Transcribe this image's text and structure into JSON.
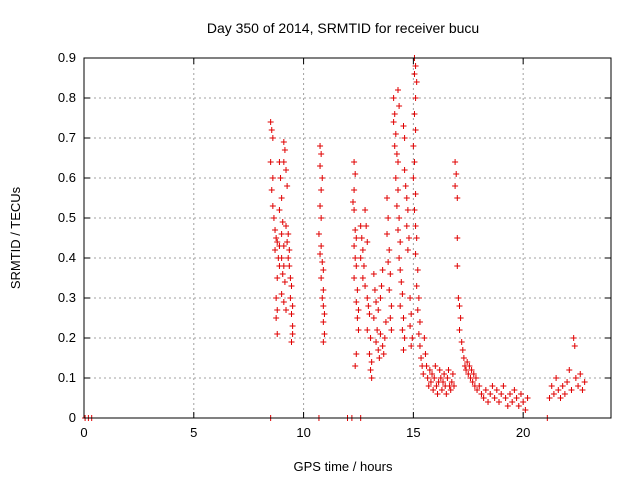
{
  "chart_data": {
    "type": "scatter",
    "title": "Day 350 of 2014, SRMTID for receiver bucu",
    "xlabel": "GPS time / hours",
    "ylabel": "SRMTID / TECUs",
    "xlim": [
      0,
      24
    ],
    "ylim": [
      0,
      0.9
    ],
    "x_ticks": [
      0,
      5,
      10,
      15,
      20
    ],
    "x_tick_labels": [
      "0",
      "5",
      "10",
      "15",
      "20"
    ],
    "y_ticks": [
      0,
      0.1,
      0.2,
      0.3,
      0.4,
      0.5,
      0.6,
      0.7,
      0.8,
      0.9
    ],
    "y_tick_labels": [
      "0",
      "0.1",
      "0.2",
      "0.3",
      "0.4",
      "0.5",
      "0.6",
      "0.7",
      "0.8",
      "0.9"
    ],
    "grid": true,
    "marker": "+",
    "color": "#e00000",
    "series": [
      {
        "name": "SRMTID",
        "points": [
          [
            0.05,
            0
          ],
          [
            0.2,
            0
          ],
          [
            0.35,
            0
          ],
          [
            8.5,
            0
          ],
          [
            10.7,
            0
          ],
          [
            12.0,
            0
          ],
          [
            12.2,
            0
          ],
          [
            12.6,
            0
          ],
          [
            21.1,
            0
          ],
          [
            8.5,
            0.74
          ],
          [
            8.55,
            0.72
          ],
          [
            8.6,
            0.7
          ],
          [
            8.5,
            0.64
          ],
          [
            8.6,
            0.6
          ],
          [
            8.55,
            0.57
          ],
          [
            8.6,
            0.53
          ],
          [
            8.65,
            0.5
          ],
          [
            8.7,
            0.47
          ],
          [
            8.75,
            0.45
          ],
          [
            8.8,
            0.44
          ],
          [
            8.7,
            0.42
          ],
          [
            8.9,
            0.43
          ],
          [
            8.85,
            0.4
          ],
          [
            8.9,
            0.38
          ],
          [
            8.8,
            0.35
          ],
          [
            8.75,
            0.3
          ],
          [
            8.8,
            0.27
          ],
          [
            8.75,
            0.25
          ],
          [
            8.8,
            0.21
          ],
          [
            8.9,
            0.64
          ],
          [
            8.95,
            0.6
          ],
          [
            9.0,
            0.55
          ],
          [
            8.9,
            0.52
          ],
          [
            9.05,
            0.49
          ],
          [
            9.0,
            0.46
          ],
          [
            9.1,
            0.43
          ],
          [
            9.0,
            0.4
          ],
          [
            9.1,
            0.38
          ],
          [
            9.05,
            0.36
          ],
          [
            9.15,
            0.34
          ],
          [
            9.0,
            0.31
          ],
          [
            9.1,
            0.29
          ],
          [
            9.2,
            0.27
          ],
          [
            9.1,
            0.69
          ],
          [
            9.15,
            0.67
          ],
          [
            9.1,
            0.64
          ],
          [
            9.2,
            0.62
          ],
          [
            9.25,
            0.58
          ],
          [
            9.2,
            0.48
          ],
          [
            9.3,
            0.46
          ],
          [
            9.25,
            0.44
          ],
          [
            9.35,
            0.42
          ],
          [
            9.3,
            0.4
          ],
          [
            9.35,
            0.38
          ],
          [
            9.4,
            0.35
          ],
          [
            9.45,
            0.33
          ],
          [
            9.4,
            0.3
          ],
          [
            9.5,
            0.28
          ],
          [
            9.45,
            0.26
          ],
          [
            9.5,
            0.23
          ],
          [
            9.5,
            0.21
          ],
          [
            9.45,
            0.19
          ],
          [
            10.75,
            0.68
          ],
          [
            10.8,
            0.66
          ],
          [
            10.75,
            0.63
          ],
          [
            10.85,
            0.6
          ],
          [
            10.8,
            0.57
          ],
          [
            10.75,
            0.53
          ],
          [
            10.8,
            0.5
          ],
          [
            10.7,
            0.46
          ],
          [
            10.8,
            0.43
          ],
          [
            10.75,
            0.41
          ],
          [
            10.85,
            0.39
          ],
          [
            10.9,
            0.37
          ],
          [
            10.8,
            0.35
          ],
          [
            10.9,
            0.32
          ],
          [
            10.85,
            0.3
          ],
          [
            10.9,
            0.28
          ],
          [
            10.95,
            0.26
          ],
          [
            10.9,
            0.24
          ],
          [
            10.95,
            0.21
          ],
          [
            10.9,
            0.19
          ],
          [
            12.3,
            0.64
          ],
          [
            12.35,
            0.61
          ],
          [
            12.3,
            0.57
          ],
          [
            12.25,
            0.54
          ],
          [
            12.3,
            0.52
          ],
          [
            12.35,
            0.47
          ],
          [
            12.4,
            0.45
          ],
          [
            12.3,
            0.43
          ],
          [
            12.35,
            0.4
          ],
          [
            12.4,
            0.38
          ],
          [
            12.3,
            0.35
          ],
          [
            12.45,
            0.32
          ],
          [
            12.4,
            0.29
          ],
          [
            12.5,
            0.27
          ],
          [
            12.45,
            0.25
          ],
          [
            12.35,
            0.13
          ],
          [
            12.4,
            0.16
          ],
          [
            12.5,
            0.22
          ],
          [
            12.6,
            0.48
          ],
          [
            12.65,
            0.45
          ],
          [
            12.7,
            0.42
          ],
          [
            12.6,
            0.4
          ],
          [
            12.75,
            0.38
          ],
          [
            12.7,
            0.35
          ],
          [
            12.8,
            0.52
          ],
          [
            12.85,
            0.48
          ],
          [
            12.9,
            0.44
          ],
          [
            12.8,
            0.33
          ],
          [
            12.9,
            0.3
          ],
          [
            12.95,
            0.28
          ],
          [
            13.0,
            0.26
          ],
          [
            12.9,
            0.22
          ],
          [
            13.05,
            0.2
          ],
          [
            13.0,
            0.16
          ],
          [
            13.1,
            0.14
          ],
          [
            13.05,
            0.12
          ],
          [
            13.1,
            0.1
          ],
          [
            13.2,
            0.36
          ],
          [
            13.25,
            0.32
          ],
          [
            13.3,
            0.29
          ],
          [
            13.2,
            0.25
          ],
          [
            13.35,
            0.22
          ],
          [
            13.3,
            0.19
          ],
          [
            13.4,
            0.17
          ],
          [
            13.45,
            0.15
          ],
          [
            13.4,
            0.27
          ],
          [
            13.5,
            0.3
          ],
          [
            13.55,
            0.33
          ],
          [
            13.6,
            0.37
          ],
          [
            13.5,
            0.21
          ],
          [
            13.6,
            0.18
          ],
          [
            13.65,
            0.16
          ],
          [
            13.7,
            0.2
          ],
          [
            13.75,
            0.24
          ],
          [
            13.8,
            0.55
          ],
          [
            13.85,
            0.5
          ],
          [
            13.8,
            0.46
          ],
          [
            13.9,
            0.42
          ],
          [
            13.85,
            0.39
          ],
          [
            13.95,
            0.36
          ],
          [
            13.9,
            0.32
          ],
          [
            14.0,
            0.28
          ],
          [
            13.95,
            0.25
          ],
          [
            14.0,
            0.22
          ],
          [
            14.1,
            0.8
          ],
          [
            14.15,
            0.76
          ],
          [
            14.1,
            0.74
          ],
          [
            14.2,
            0.71
          ],
          [
            14.15,
            0.68
          ],
          [
            14.25,
            0.66
          ],
          [
            14.3,
            0.64
          ],
          [
            14.2,
            0.6
          ],
          [
            14.3,
            0.57
          ],
          [
            14.25,
            0.53
          ],
          [
            14.35,
            0.5
          ],
          [
            14.3,
            0.47
          ],
          [
            14.4,
            0.44
          ],
          [
            14.35,
            0.4
          ],
          [
            14.4,
            0.37
          ],
          [
            14.45,
            0.34
          ],
          [
            14.5,
            0.31
          ],
          [
            14.4,
            0.28
          ],
          [
            14.55,
            0.25
          ],
          [
            14.5,
            0.22
          ],
          [
            14.6,
            0.2
          ],
          [
            14.55,
            0.17
          ],
          [
            14.3,
            0.82
          ],
          [
            14.35,
            0.78
          ],
          [
            14.6,
            0.62
          ],
          [
            14.65,
            0.58
          ],
          [
            14.7,
            0.55
          ],
          [
            14.75,
            0.52
          ],
          [
            14.7,
            0.48
          ],
          [
            14.8,
            0.45
          ],
          [
            14.75,
            0.42
          ],
          [
            14.85,
            0.3
          ],
          [
            14.9,
            0.26
          ],
          [
            14.85,
            0.23
          ],
          [
            14.95,
            0.2
          ],
          [
            14.9,
            0.18
          ],
          [
            14.55,
            0.73
          ],
          [
            14.6,
            0.7
          ],
          [
            15.05,
            0.9
          ],
          [
            15.1,
            0.88
          ],
          [
            15.05,
            0.86
          ],
          [
            15.15,
            0.84
          ],
          [
            15.1,
            0.8
          ],
          [
            15.05,
            0.76
          ],
          [
            15.1,
            0.72
          ],
          [
            15.0,
            0.68
          ],
          [
            15.05,
            0.64
          ],
          [
            15.0,
            0.6
          ],
          [
            15.1,
            0.56
          ],
          [
            15.05,
            0.52
          ],
          [
            15.1,
            0.48
          ],
          [
            15.15,
            0.45
          ],
          [
            15.1,
            0.41
          ],
          [
            15.2,
            0.37
          ],
          [
            15.15,
            0.33
          ],
          [
            15.25,
            0.3
          ],
          [
            15.2,
            0.27
          ],
          [
            15.3,
            0.24
          ],
          [
            15.25,
            0.21
          ],
          [
            15.3,
            0.18
          ],
          [
            15.35,
            0.15
          ],
          [
            15.4,
            0.13
          ],
          [
            15.45,
            0.11
          ],
          [
            15.5,
            0.2
          ],
          [
            15.55,
            0.16
          ],
          [
            15.6,
            0.13
          ],
          [
            15.65,
            0.1
          ],
          [
            15.7,
            0.08
          ],
          [
            15.75,
            0.12
          ],
          [
            15.8,
            0.09
          ],
          [
            15.85,
            0.11
          ],
          [
            15.9,
            0.07
          ],
          [
            15.95,
            0.1
          ],
          [
            16.0,
            0.13
          ],
          [
            16.05,
            0.08
          ],
          [
            16.1,
            0.06
          ],
          [
            16.15,
            0.09
          ],
          [
            16.2,
            0.12
          ],
          [
            16.25,
            0.1
          ],
          [
            16.3,
            0.07
          ],
          [
            16.35,
            0.09
          ],
          [
            16.4,
            0.11
          ],
          [
            16.45,
            0.08
          ],
          [
            16.5,
            0.06
          ],
          [
            16.55,
            0.1
          ],
          [
            16.6,
            0.12
          ],
          [
            16.65,
            0.08
          ],
          [
            16.7,
            0.07
          ],
          [
            16.75,
            0.09
          ],
          [
            16.8,
            0.11
          ],
          [
            16.85,
            0.08
          ],
          [
            16.9,
            0.64
          ],
          [
            16.95,
            0.61
          ],
          [
            16.9,
            0.58
          ],
          [
            17.0,
            0.55
          ],
          [
            17.0,
            0.45
          ],
          [
            17.0,
            0.38
          ],
          [
            17.05,
            0.3
          ],
          [
            17.1,
            0.28
          ],
          [
            17.15,
            0.25
          ],
          [
            17.1,
            0.22
          ],
          [
            17.2,
            0.19
          ],
          [
            17.25,
            0.17
          ],
          [
            17.3,
            0.15
          ],
          [
            17.35,
            0.13
          ],
          [
            17.4,
            0.12
          ],
          [
            17.45,
            0.14
          ],
          [
            17.5,
            0.11
          ],
          [
            17.55,
            0.13
          ],
          [
            17.6,
            0.1
          ],
          [
            17.65,
            0.12
          ],
          [
            17.7,
            0.09
          ],
          [
            17.75,
            0.11
          ],
          [
            17.8,
            0.08
          ],
          [
            17.85,
            0.1
          ],
          [
            17.9,
            0.07
          ],
          [
            18.0,
            0.08
          ],
          [
            18.1,
            0.06
          ],
          [
            18.2,
            0.05
          ],
          [
            18.3,
            0.07
          ],
          [
            18.4,
            0.04
          ],
          [
            18.5,
            0.06
          ],
          [
            18.6,
            0.08
          ],
          [
            18.7,
            0.05
          ],
          [
            18.8,
            0.07
          ],
          [
            18.9,
            0.04
          ],
          [
            19.0,
            0.06
          ],
          [
            19.1,
            0.08
          ],
          [
            19.2,
            0.05
          ],
          [
            19.3,
            0.03
          ],
          [
            19.4,
            0.06
          ],
          [
            19.5,
            0.04
          ],
          [
            19.6,
            0.07
          ],
          [
            19.7,
            0.05
          ],
          [
            19.8,
            0.03
          ],
          [
            19.9,
            0.06
          ],
          [
            20.0,
            0.04
          ],
          [
            20.1,
            0.02
          ],
          [
            20.2,
            0.05
          ],
          [
            21.2,
            0.05
          ],
          [
            21.3,
            0.08
          ],
          [
            21.4,
            0.06
          ],
          [
            21.5,
            0.1
          ],
          [
            21.6,
            0.07
          ],
          [
            21.7,
            0.05
          ],
          [
            21.8,
            0.08
          ],
          [
            21.9,
            0.06
          ],
          [
            22.0,
            0.09
          ],
          [
            22.1,
            0.12
          ],
          [
            22.2,
            0.07
          ],
          [
            22.3,
            0.2
          ],
          [
            22.35,
            0.18
          ],
          [
            22.4,
            0.1
          ],
          [
            22.5,
            0.08
          ],
          [
            22.6,
            0.11
          ],
          [
            22.7,
            0.07
          ],
          [
            22.8,
            0.09
          ]
        ]
      }
    ]
  }
}
